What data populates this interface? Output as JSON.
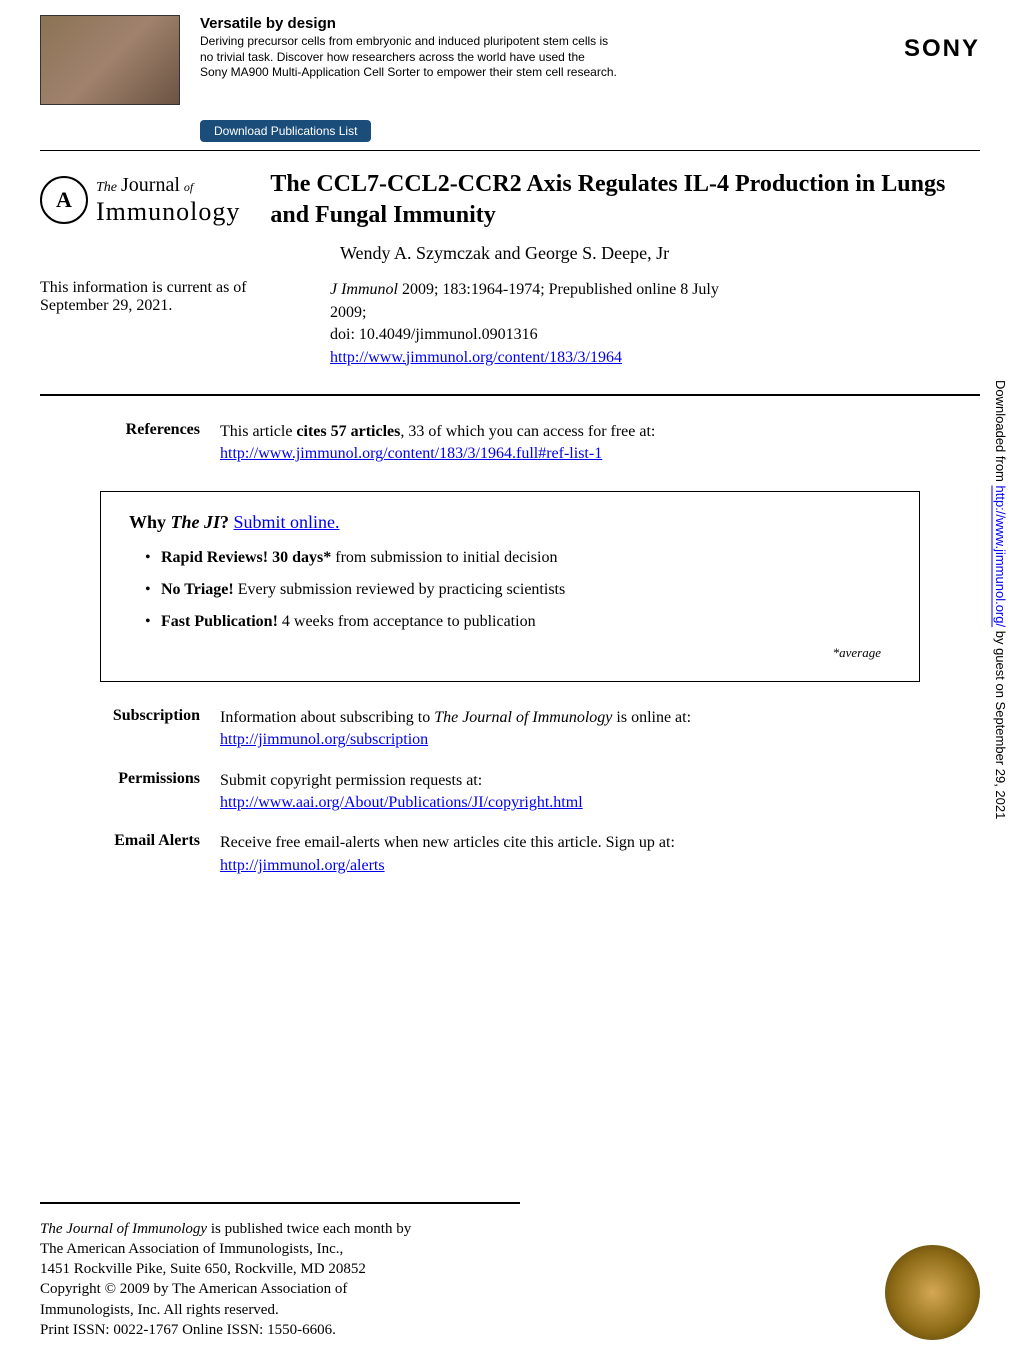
{
  "banner": {
    "title": "Versatile by design",
    "desc_line1": "Deriving precursor cells from embryonic and induced pluripotent stem cells is",
    "desc_line2": "no trivial task. Discover how researchers across the world have used the",
    "desc_line3": "Sony MA900 Multi-Application Cell Sorter to empower their stem cell research.",
    "button": "Download Publications List",
    "sponsor": "SONY"
  },
  "journal_logo": {
    "badge": "A",
    "the": "The",
    "journal": "Journal",
    "of": "of",
    "name": "Immunology"
  },
  "article": {
    "title": "The CCL7-CCL2-CCR2 Axis Regulates IL-4 Production in Lungs and Fungal Immunity",
    "authors": "Wendy A. Szymczak and George S. Deepe, Jr",
    "current_info": "This information is current as of September 29, 2021.",
    "citation_line1": "J Immunol 2009; 183:1964-1974; Prepublished online 8 July",
    "citation_line2": "2009;",
    "doi": "doi: 10.4049/jimmunol.0901316",
    "url": "http://www.jimmunol.org/content/183/3/1964"
  },
  "references": {
    "label": "References",
    "text_before": "This article ",
    "text_bold": "cites 57 articles",
    "text_after": ", 33 of which you can access for free at:",
    "url": "http://www.jimmunol.org/content/183/3/1964.full#ref-list-1"
  },
  "why_box": {
    "title_prefix": "Why ",
    "title_italic": "The JI",
    "title_q": "? ",
    "submit_link": "Submit online.",
    "bullets": [
      {
        "bold": "Rapid Reviews! 30 days*",
        "rest": " from submission to initial decision"
      },
      {
        "bold": "No Triage!",
        "rest": " Every submission reviewed by practicing scientists"
      },
      {
        "bold": "Fast Publication!",
        "rest": " 4 weeks from acceptance to publication"
      }
    ],
    "average": "*average"
  },
  "meta": {
    "subscription": {
      "label": "Subscription",
      "text_before": "Information about subscribing to ",
      "text_italic": "The Journal of Immunology",
      "text_after": " is online at:",
      "url": "http://jimmunol.org/subscription"
    },
    "permissions": {
      "label": "Permissions",
      "text": "Submit copyright permission requests at:",
      "url": "http://www.aai.org/About/Publications/JI/copyright.html"
    },
    "email_alerts": {
      "label": "Email Alerts",
      "text": "Receive free email-alerts when new articles cite this article. Sign up at:",
      "url": "http://jimmunol.org/alerts"
    }
  },
  "sidebar": {
    "before": "Downloaded from ",
    "link": "http://www.jimmunol.org/",
    "after": " by guest on September 29, 2021"
  },
  "footer": {
    "line1_italic": "The Journal of Immunology",
    "line1_rest": " is published twice each month by",
    "line2": "The American Association of Immunologists, Inc.,",
    "line3": "1451 Rockville Pike, Suite 650, Rockville, MD 20852",
    "line4": "Copyright © 2009 by The American Association of",
    "line5": "Immunologists, Inc. All rights reserved.",
    "line6": "Print ISSN: 0022-1767 Online ISSN: 1550-6606."
  },
  "colors": {
    "link": "#0000ee",
    "button_bg": "#1a4d7a",
    "text": "#000000",
    "bg": "#ffffff"
  }
}
